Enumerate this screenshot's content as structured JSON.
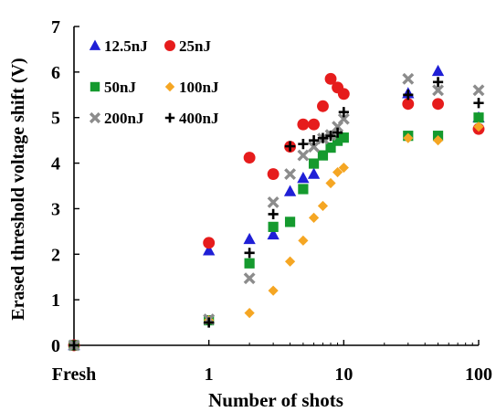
{
  "chart_data": {
    "type": "scatter",
    "title": "",
    "xlabel": "Number of shots",
    "ylabel": "Erased threshold voltage shift (V)",
    "x_scale": "log",
    "x_ticks": [
      {
        "label": "Fresh",
        "value": 0.1
      },
      {
        "label": "1",
        "value": 1
      },
      {
        "label": "10",
        "value": 10
      },
      {
        "label": "100",
        "value": 100
      }
    ],
    "ylim": [
      0,
      7
    ],
    "y_ticks": [
      "0",
      "1",
      "2",
      "3",
      "4",
      "5",
      "6",
      "7"
    ],
    "grid": false,
    "legend_position": "top-left",
    "series": [
      {
        "name": "12.5nJ",
        "marker": "triangle",
        "color": "#1f1fd6",
        "points": [
          [
            0.1,
            0
          ],
          [
            1,
            2.08
          ],
          [
            2,
            2.33
          ],
          [
            3,
            2.43
          ],
          [
            4,
            3.38
          ],
          [
            5,
            3.67
          ],
          [
            6,
            3.76
          ],
          [
            30,
            5.53
          ],
          [
            50,
            6.02
          ],
          [
            100,
            5.0
          ]
        ]
      },
      {
        "name": "25nJ",
        "marker": "circle",
        "color": "#e61c1c",
        "points": [
          [
            0.1,
            0
          ],
          [
            1,
            2.25
          ],
          [
            2,
            4.12
          ],
          [
            3,
            3.76
          ],
          [
            4,
            4.36
          ],
          [
            5,
            4.85
          ],
          [
            6,
            4.85
          ],
          [
            7,
            5.25
          ],
          [
            8,
            5.85
          ],
          [
            9,
            5.66
          ],
          [
            10,
            5.52
          ],
          [
            30,
            5.3
          ],
          [
            50,
            5.3
          ],
          [
            100,
            4.75
          ]
        ]
      },
      {
        "name": "50nJ",
        "marker": "square",
        "color": "#159a2e",
        "points": [
          [
            0.1,
            0
          ],
          [
            1,
            0.55
          ],
          [
            2,
            1.8
          ],
          [
            3,
            2.6
          ],
          [
            4,
            2.71
          ],
          [
            5,
            3.43
          ],
          [
            6,
            3.99
          ],
          [
            7,
            4.17
          ],
          [
            8,
            4.34
          ],
          [
            9,
            4.49
          ],
          [
            10,
            4.56
          ],
          [
            30,
            4.6
          ],
          [
            50,
            4.6
          ],
          [
            100,
            5.0
          ]
        ]
      },
      {
        "name": "100nJ",
        "marker": "diamond",
        "color": "#f5a623",
        "points": [
          [
            0.1,
            0
          ],
          [
            1,
            0.55
          ],
          [
            2,
            0.71
          ],
          [
            3,
            1.2
          ],
          [
            4,
            1.84
          ],
          [
            5,
            2.3
          ],
          [
            6,
            2.8
          ],
          [
            7,
            3.06
          ],
          [
            8,
            3.56
          ],
          [
            9,
            3.8
          ],
          [
            10,
            3.9
          ],
          [
            30,
            4.55
          ],
          [
            50,
            4.5
          ],
          [
            100,
            4.8
          ]
        ]
      },
      {
        "name": "200nJ",
        "marker": "x",
        "color": "#8c8c8c",
        "points": [
          [
            0.1,
            0
          ],
          [
            1,
            0.57
          ],
          [
            2,
            1.47
          ],
          [
            3,
            3.14
          ],
          [
            4,
            3.76
          ],
          [
            5,
            4.17
          ],
          [
            6,
            4.36
          ],
          [
            7,
            4.54
          ],
          [
            8,
            4.62
          ],
          [
            9,
            4.8
          ],
          [
            10,
            4.97
          ],
          [
            30,
            5.85
          ],
          [
            50,
            5.6
          ],
          [
            100,
            5.6
          ]
        ]
      },
      {
        "name": "400nJ",
        "marker": "plus",
        "color": "#000000",
        "points": [
          [
            0.1,
            0
          ],
          [
            1,
            0.5
          ],
          [
            2,
            2.03
          ],
          [
            3,
            2.88
          ],
          [
            4,
            4.37
          ],
          [
            5,
            4.42
          ],
          [
            6,
            4.5
          ],
          [
            7,
            4.55
          ],
          [
            8,
            4.6
          ],
          [
            9,
            4.67
          ],
          [
            10,
            5.12
          ],
          [
            30,
            5.5
          ],
          [
            50,
            5.78
          ],
          [
            100,
            5.32
          ]
        ]
      }
    ]
  }
}
